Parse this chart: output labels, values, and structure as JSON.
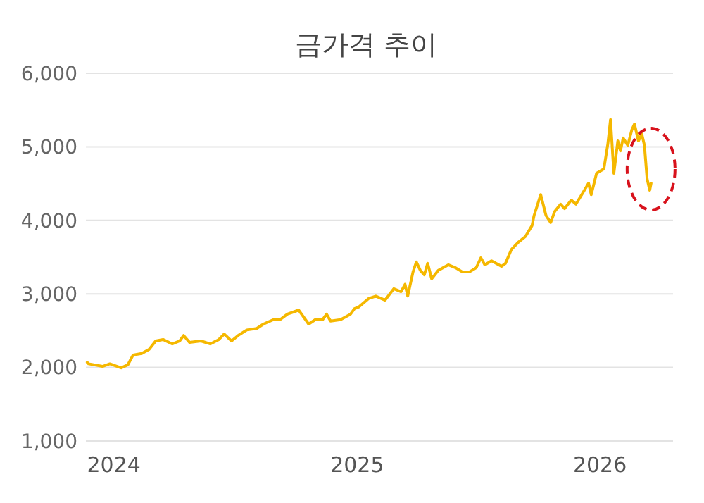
{
  "chart_data": {
    "type": "line",
    "title": "금가격 추이",
    "x": [
      "2023-11-22",
      "2023-11-24",
      "2023-12-15",
      "2023-12-26",
      "2024-01-12",
      "2024-01-22",
      "2024-01-30",
      "2024-02-12",
      "2024-02-23",
      "2024-03-04",
      "2024-03-15",
      "2024-03-29",
      "2024-04-09",
      "2024-04-15",
      "2024-04-24",
      "2024-05-11",
      "2024-05-25",
      "2024-06-07",
      "2024-06-15",
      "2024-06-26",
      "2024-07-06",
      "2024-07-19",
      "2024-08-03",
      "2024-08-13",
      "2024-08-28",
      "2024-09-07",
      "2024-09-18",
      "2024-09-29",
      "2024-10-05",
      "2024-10-20",
      "2024-10-30",
      "2024-11-10",
      "2024-11-16",
      "2024-11-22",
      "2024-12-07",
      "2024-12-22",
      "2024-12-28",
      "2025-01-03",
      "2025-01-18",
      "2025-01-29",
      "2025-02-12",
      "2025-02-25",
      "2025-03-08",
      "2025-03-14",
      "2025-03-18",
      "2025-03-26",
      "2025-03-31",
      "2025-04-06",
      "2025-04-12",
      "2025-04-17",
      "2025-04-23",
      "2025-05-03",
      "2025-05-18",
      "2025-05-29",
      "2025-06-08",
      "2025-06-19",
      "2025-06-29",
      "2025-07-06",
      "2025-07-12",
      "2025-07-22",
      "2025-08-06",
      "2025-08-12",
      "2025-08-21",
      "2025-08-31",
      "2025-09-11",
      "2025-09-21",
      "2025-09-24",
      "2025-10-04",
      "2025-10-12",
      "2025-10-19",
      "2025-10-25",
      "2025-11-03",
      "2025-11-09",
      "2025-11-19",
      "2025-11-26",
      "2025-12-06",
      "2025-12-15",
      "2025-12-19",
      "2025-12-27",
      "2026-01-07",
      "2026-01-13",
      "2026-01-17",
      "2026-01-22",
      "2026-01-28",
      "2026-02-01",
      "2026-02-05",
      "2026-02-12",
      "2026-02-18",
      "2026-02-22",
      "2026-02-28",
      "2026-03-05",
      "2026-03-09",
      "2026-03-13",
      "2026-03-17",
      "2026-03-19"
    ],
    "series": [
      {
        "color": "#f5b800",
        "values": [
          2070,
          2050,
          2015,
          2050,
          1995,
          2035,
          2170,
          2190,
          2245,
          2360,
          2380,
          2320,
          2360,
          2435,
          2340,
          2360,
          2320,
          2380,
          2455,
          2360,
          2435,
          2510,
          2530,
          2590,
          2650,
          2650,
          2725,
          2760,
          2780,
          2590,
          2650,
          2650,
          2725,
          2630,
          2650,
          2725,
          2800,
          2820,
          2935,
          2970,
          2915,
          3070,
          3030,
          3130,
          2970,
          3300,
          3435,
          3320,
          3260,
          3415,
          3205,
          3320,
          3395,
          3355,
          3300,
          3300,
          3355,
          3490,
          3395,
          3450,
          3375,
          3415,
          3605,
          3700,
          3780,
          3930,
          4065,
          4350,
          4065,
          3970,
          4120,
          4220,
          4160,
          4275,
          4220,
          4370,
          4505,
          4350,
          4640,
          4700,
          5040,
          5370,
          4640,
          5080,
          4945,
          5120,
          5020,
          5230,
          5310,
          5080,
          5175,
          5020,
          4565,
          4410,
          4505
        ]
      }
    ],
    "xlim": [
      "2023-11-20",
      "2026-04-21"
    ],
    "xticks": [
      {
        "value": "2024-01-01",
        "label": "2024"
      },
      {
        "value": "2025-01-01",
        "label": "2025"
      },
      {
        "value": "2026-01-01",
        "label": "2026"
      }
    ],
    "ylim": [
      1000,
      6000
    ],
    "yticks": [
      {
        "value": 1000,
        "label": "1,000"
      },
      {
        "value": 2000,
        "label": "2,000"
      },
      {
        "value": 3000,
        "label": "3,000"
      },
      {
        "value": 4000,
        "label": "4,000"
      },
      {
        "value": 5000,
        "label": "5,000"
      },
      {
        "value": 6000,
        "label": "6,000"
      }
    ],
    "grid": "y",
    "marker": "none",
    "line_style": "solid"
  }
}
